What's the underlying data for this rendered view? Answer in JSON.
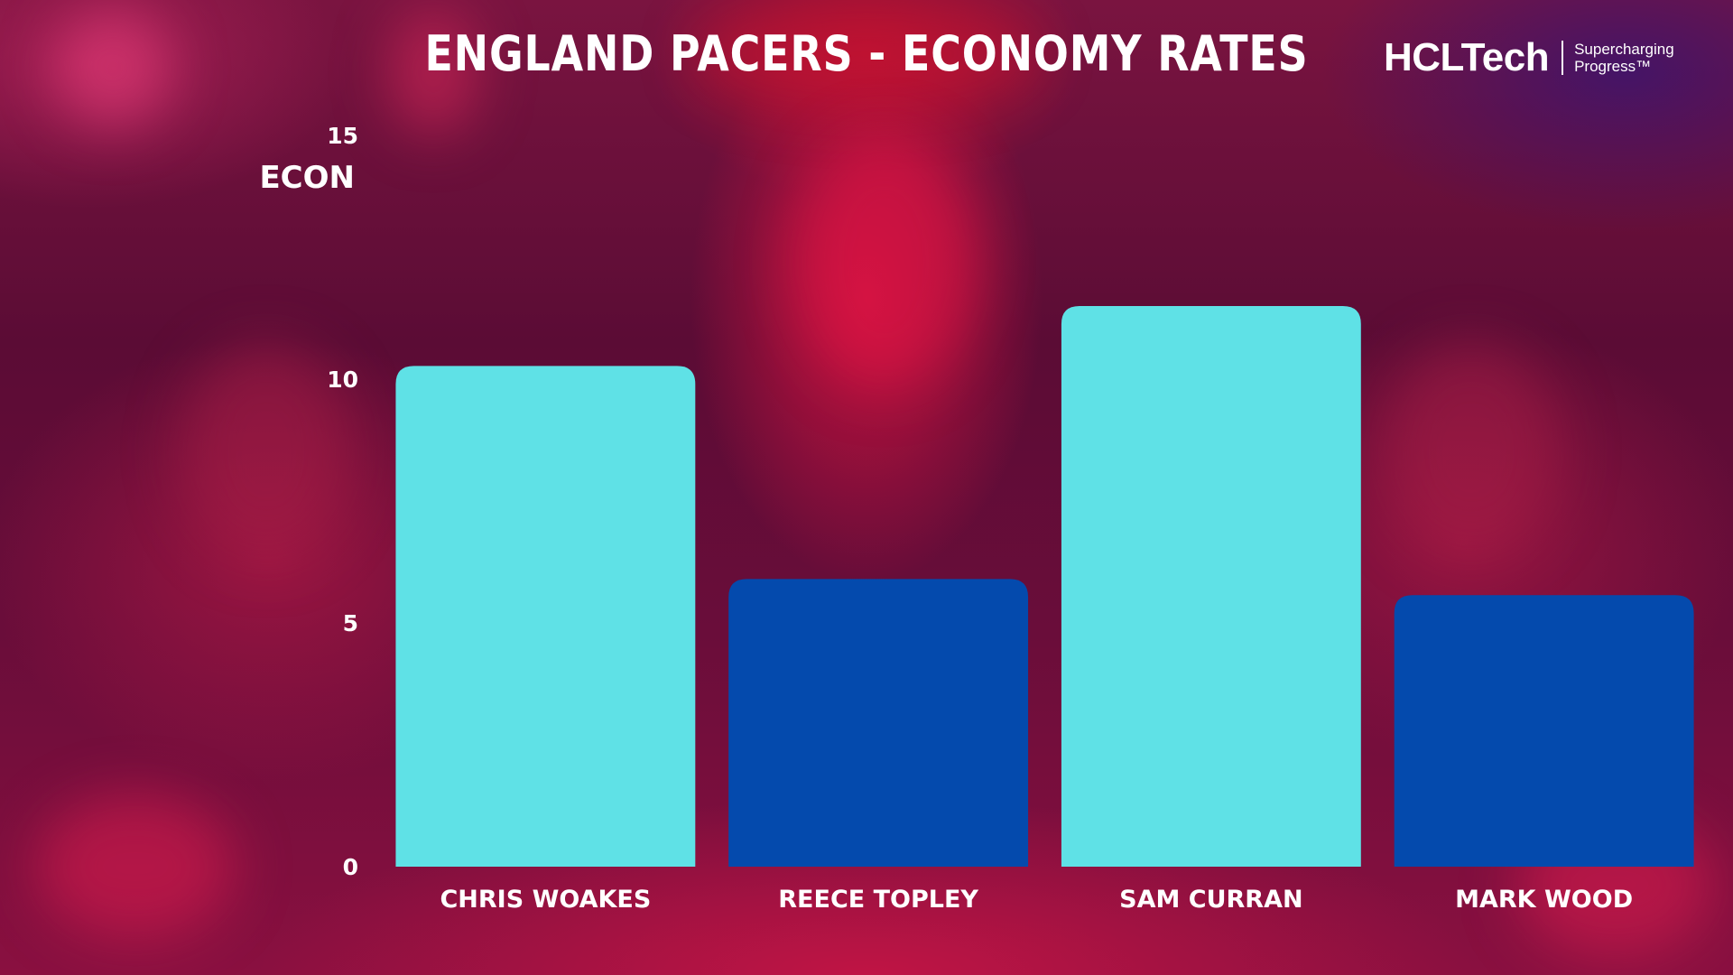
{
  "header": {
    "title": "ENGLAND PACERS - ECONOMY RATES"
  },
  "brand": {
    "name": "HCLTech",
    "tagline_line1": "Supercharging",
    "tagline_line2": "Progress™"
  },
  "colors": {
    "bar_light": "#5fe1e6",
    "bar_dark": "#044aad",
    "text": "#ffffff"
  },
  "chart_data": {
    "type": "bar",
    "title": "ENGLAND PACERS - ECONOMY RATES",
    "xlabel": "",
    "ylabel": "ECON",
    "categories": [
      "CHRIS WOAKES",
      "REECE TOPLEY",
      "SAM CURRAN",
      "MARK WOOD"
    ],
    "values": [
      10.27,
      5.9,
      11.5,
      5.57
    ],
    "bar_colors": [
      "#5fe1e6",
      "#044aad",
      "#5fe1e6",
      "#044aad"
    ],
    "ylim": [
      0,
      15
    ],
    "yticks": [
      "0",
      "5",
      "10",
      "15"
    ],
    "grid": false,
    "legend": "none"
  }
}
